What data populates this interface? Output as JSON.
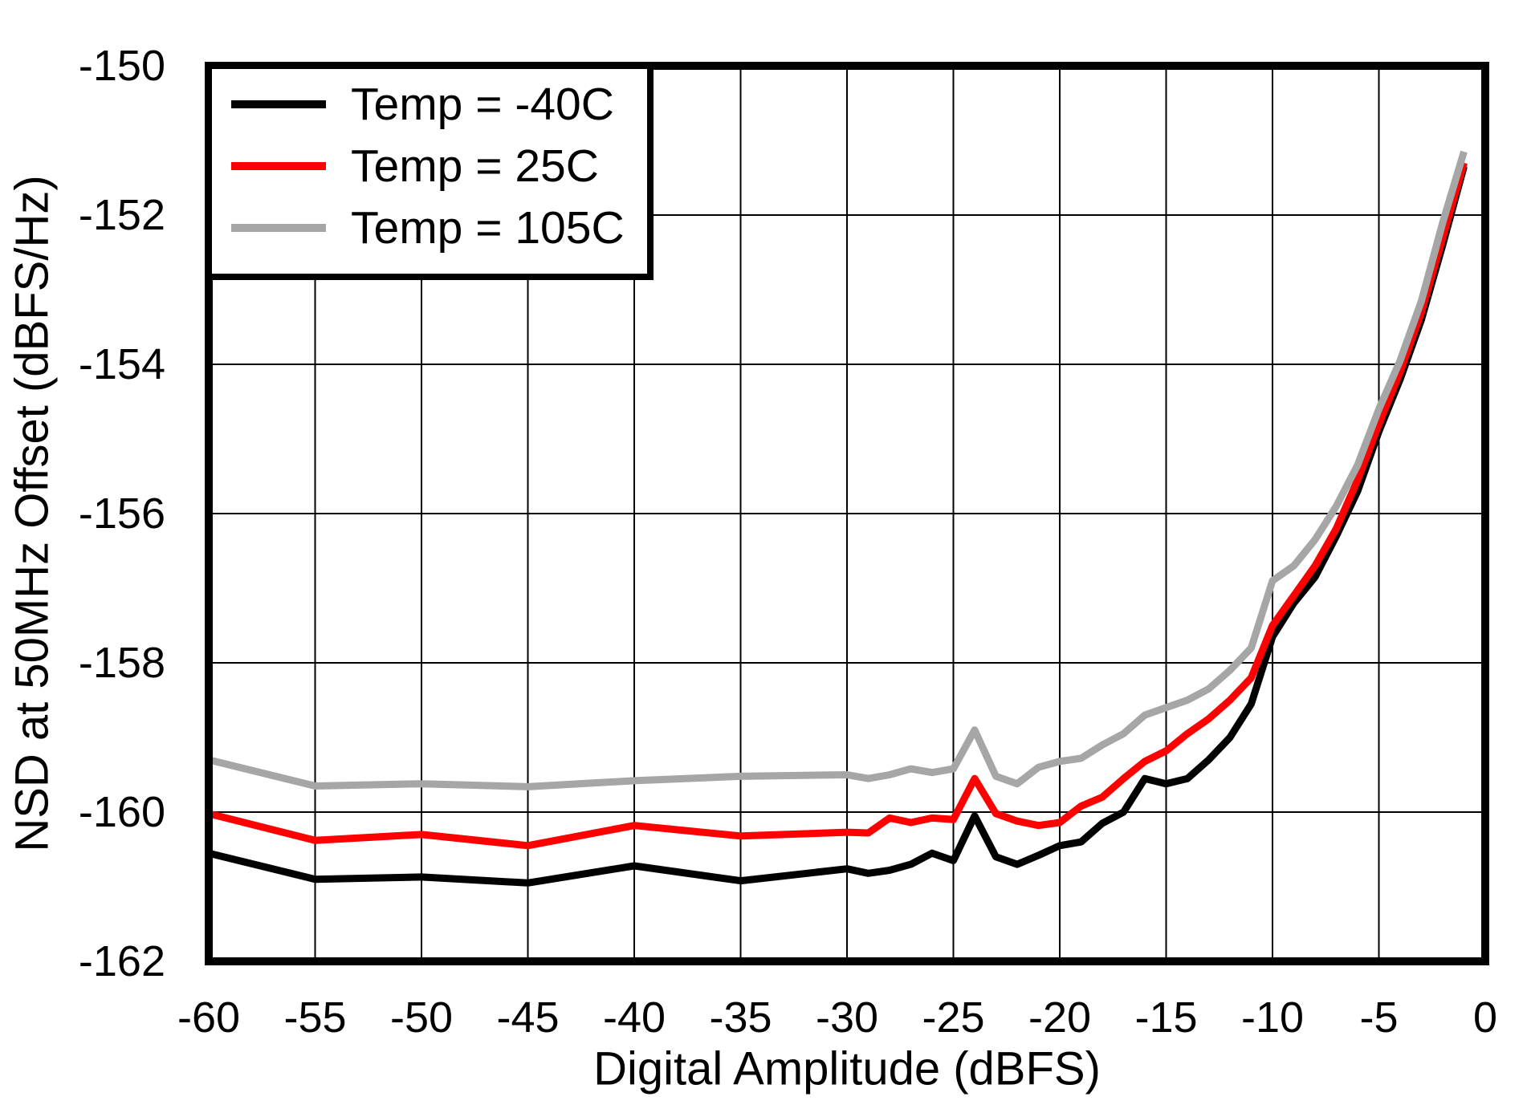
{
  "chart_data": {
    "type": "line",
    "title": "",
    "xlabel": "Digital Amplitude (dBFS)",
    "ylabel": "NSD at 50MHz Offset (dBFS/Hz)",
    "xlim": [
      -60,
      0
    ],
    "ylim": [
      -162,
      -150
    ],
    "x_ticks": [
      -60,
      -55,
      -50,
      -45,
      -40,
      -35,
      -30,
      -25,
      -20,
      -15,
      -10,
      -5,
      0
    ],
    "y_ticks": [
      -150,
      -152,
      -154,
      -156,
      -158,
      -160,
      -162
    ],
    "grid": true,
    "legend_position": "top-left",
    "axis_color": "#000000",
    "grid_color": "#000000",
    "x": [
      -60,
      -55,
      -50,
      -45,
      -40,
      -35,
      -30,
      -29,
      -28,
      -27,
      -26,
      -25,
      -24,
      -23,
      -22,
      -21,
      -20,
      -19,
      -18,
      -17,
      -16,
      -15,
      -14,
      -13,
      -12,
      -11,
      -10,
      -9,
      -8,
      -7,
      -6,
      -5,
      -4,
      -3,
      -2,
      -1
    ],
    "series": [
      {
        "name": "Temp = -40C",
        "color": "#000000",
        "values": [
          -160.55,
          -160.9,
          -160.87,
          -160.95,
          -160.72,
          -160.92,
          -160.76,
          -160.82,
          -160.78,
          -160.7,
          -160.55,
          -160.65,
          -160.05,
          -160.6,
          -160.7,
          -160.58,
          -160.45,
          -160.4,
          -160.15,
          -160.0,
          -159.55,
          -159.62,
          -159.55,
          -159.3,
          -159.0,
          -158.55,
          -157.65,
          -157.2,
          -156.85,
          -156.3,
          -155.7,
          -154.9,
          -154.2,
          -153.4,
          -152.4,
          -151.35
        ]
      },
      {
        "name": "Temp = 25C",
        "color": "#FF0000",
        "values": [
          -160.02,
          -160.38,
          -160.3,
          -160.45,
          -160.18,
          -160.32,
          -160.27,
          -160.28,
          -160.08,
          -160.14,
          -160.08,
          -160.1,
          -159.55,
          -160.02,
          -160.12,
          -160.18,
          -160.14,
          -159.92,
          -159.8,
          -159.55,
          -159.32,
          -159.18,
          -158.95,
          -158.75,
          -158.5,
          -158.2,
          -157.5,
          -157.1,
          -156.7,
          -156.2,
          -155.55,
          -154.8,
          -154.1,
          -153.3,
          -152.3,
          -151.3
        ]
      },
      {
        "name": "Temp = 105C",
        "color": "#A6A6A6",
        "values": [
          -159.3,
          -159.65,
          -159.62,
          -159.66,
          -159.58,
          -159.52,
          -159.5,
          -159.55,
          -159.5,
          -159.42,
          -159.47,
          -159.42,
          -158.9,
          -159.52,
          -159.62,
          -159.4,
          -159.32,
          -159.28,
          -159.1,
          -158.95,
          -158.7,
          -158.6,
          -158.5,
          -158.35,
          -158.1,
          -157.8,
          -156.9,
          -156.7,
          -156.35,
          -155.9,
          -155.35,
          -154.6,
          -153.95,
          -153.15,
          -152.1,
          -151.15
        ]
      }
    ]
  }
}
